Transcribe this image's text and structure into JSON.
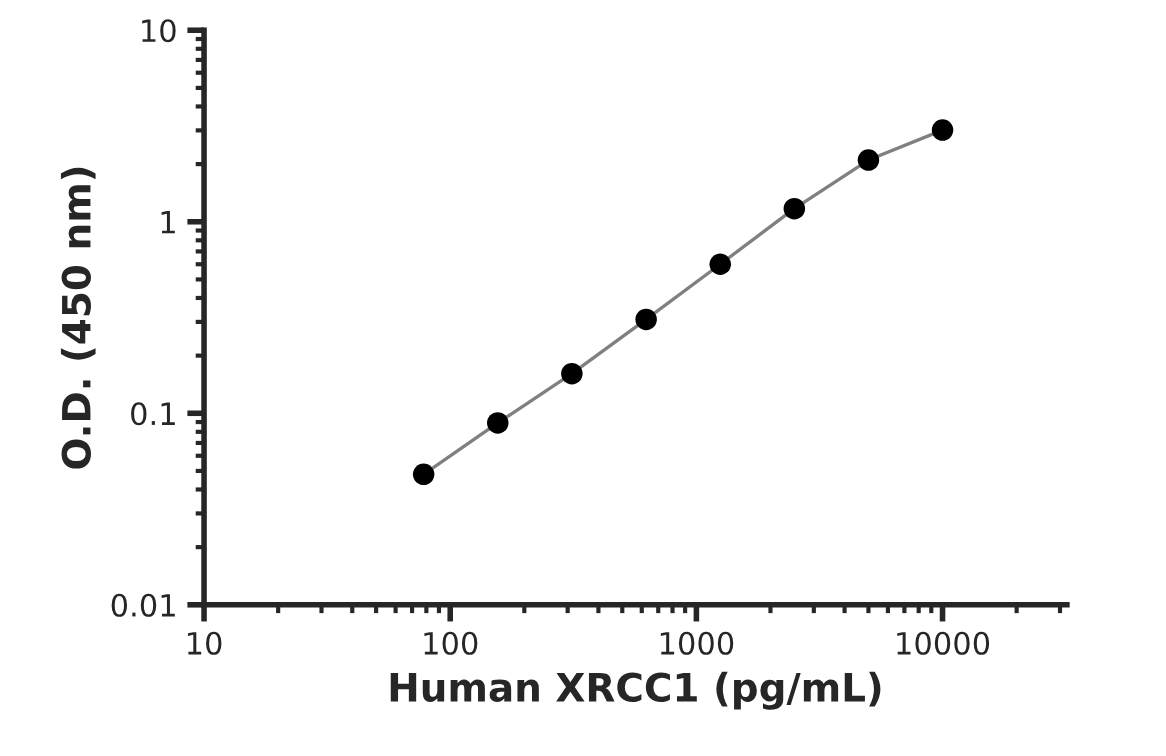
{
  "chart_data": {
    "type": "scatter",
    "xlabel": "Human XRCC1 (pg/mL)",
    "ylabel": "O.D. (450 nm)",
    "log": "xy",
    "x": [
      78,
      156,
      312,
      625,
      1250,
      2500,
      5000,
      10000
    ],
    "series": [
      {
        "type": "line",
        "color": "#808080",
        "values": [
          0.048,
          0.089,
          0.161,
          0.309,
          0.6,
          1.17,
          2.1,
          3.01
        ]
      },
      {
        "color": "#000000",
        "marker": "circle",
        "values": [
          0.048,
          0.089,
          0.161,
          0.309,
          0.6,
          1.17,
          2.1,
          3.01
        ]
      }
    ],
    "xlim": [
      10,
      32000
    ],
    "xticks": [
      10,
      100,
      1000,
      10000
    ],
    "ylim": [
      0.01,
      10
    ],
    "yticks": [
      0.01,
      0.1,
      1,
      10
    ],
    "grid": false,
    "legend": false
  }
}
